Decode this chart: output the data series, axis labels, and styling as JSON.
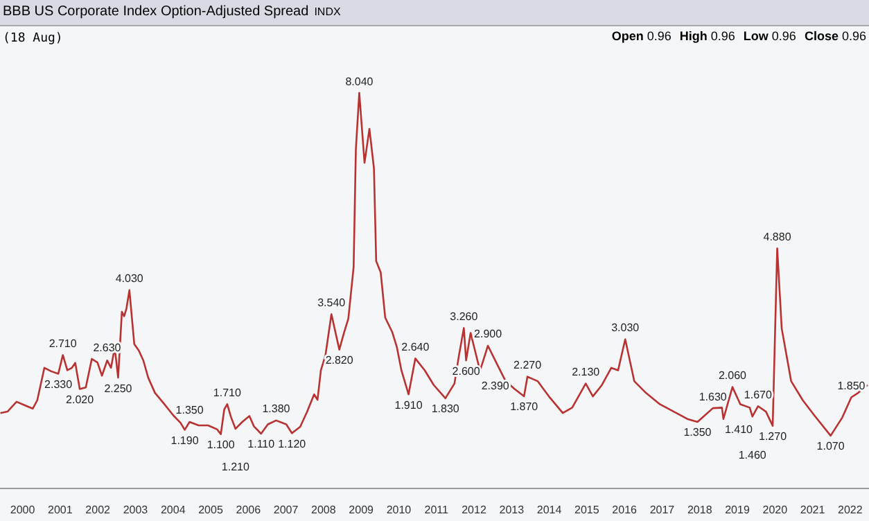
{
  "chart_data": {
    "type": "line",
    "title": "BBB US Corporate Index Option-Adjusted Spread",
    "subtitle": "INDX",
    "annotations": [
      "Open 0.96",
      "High 0.96",
      "Low 0.96",
      "Close 0.96",
      "(18 Aug)"
    ],
    "xlim": [
      1999.4,
      2022.5
    ],
    "xticks": [
      2000,
      2001,
      2002,
      2003,
      2004,
      2005,
      2006,
      2007,
      2008,
      2009,
      2010,
      2011,
      2012,
      2013,
      2014,
      2015,
      2016,
      2017,
      2018,
      2019,
      2020,
      2021,
      2022
    ],
    "x": [
      1999.41,
      1999.6,
      1999.84,
      2000.08,
      2000.27,
      2000.39,
      2000.58,
      2000.76,
      2000.95,
      2001.07,
      2001.19,
      2001.31,
      2001.4,
      2001.52,
      2001.68,
      2001.84,
      2001.99,
      2002.11,
      2002.25,
      2002.35,
      2002.45,
      2002.54,
      2002.64,
      2002.7,
      2002.76,
      2002.84,
      2002.97,
      2003.09,
      2003.21,
      2003.34,
      2003.52,
      2003.77,
      2004.01,
      2004.2,
      2004.31,
      2004.44,
      2004.68,
      2004.93,
      2005.17,
      2005.27,
      2005.36,
      2005.44,
      2005.54,
      2005.66,
      2005.84,
      2006.03,
      2006.15,
      2006.34,
      2006.52,
      2006.74,
      2007.01,
      2007.16,
      2007.38,
      2007.56,
      2007.75,
      2007.84,
      2007.93,
      2008.05,
      2008.21,
      2008.42,
      2008.54,
      2008.66,
      2008.8,
      2008.86,
      2008.95,
      2009.09,
      2009.22,
      2009.34,
      2009.4,
      2009.52,
      2009.64,
      2009.83,
      2009.95,
      2010.07,
      2010.26,
      2010.44,
      2010.69,
      2010.93,
      2011.24,
      2011.48,
      2011.6,
      2011.73,
      2011.79,
      2011.91,
      2012.16,
      2012.37,
      2012.59,
      2012.84,
      2013.08,
      2013.33,
      2013.42,
      2013.69,
      2013.99,
      2014.36,
      2014.61,
      2014.97,
      2015.16,
      2015.4,
      2015.65,
      2015.83,
      2016.02,
      2016.26,
      2016.57,
      2016.94,
      2017.31,
      2017.67,
      2017.94,
      2018.35,
      2018.59,
      2018.63,
      2018.87,
      2019.08,
      2019.33,
      2019.4,
      2019.55,
      2019.76,
      2019.94,
      2020.06,
      2020.18,
      2020.43,
      2020.74,
      2021.05,
      2021.48,
      2021.79,
      2022.03,
      2022.21,
      2022.46
    ],
    "series": [
      {
        "color": "#b83232",
        "values": [
          1.53,
          1.56,
          1.76,
          1.68,
          1.62,
          1.79,
          2.45,
          2.38,
          2.33,
          2.71,
          2.4,
          2.45,
          2.55,
          2.02,
          2.05,
          2.63,
          2.56,
          2.29,
          2.6,
          2.45,
          2.86,
          2.25,
          3.59,
          3.5,
          3.65,
          4.03,
          2.93,
          2.8,
          2.6,
          2.25,
          1.94,
          1.71,
          1.48,
          1.33,
          1.19,
          1.35,
          1.28,
          1.28,
          1.2,
          1.1,
          1.6,
          1.71,
          1.45,
          1.21,
          1.35,
          1.47,
          1.26,
          1.11,
          1.3,
          1.38,
          1.3,
          1.12,
          1.25,
          1.55,
          1.91,
          1.8,
          2.4,
          2.7,
          3.54,
          2.82,
          3.15,
          3.45,
          4.5,
          6.9,
          8.04,
          6.62,
          7.31,
          6.51,
          4.62,
          4.39,
          3.47,
          3.17,
          2.87,
          2.4,
          1.91,
          2.64,
          2.4,
          2.1,
          1.83,
          2.13,
          2.7,
          3.26,
          2.6,
          3.16,
          2.39,
          2.9,
          2.56,
          2.18,
          2.02,
          1.87,
          2.27,
          2.18,
          1.87,
          1.53,
          1.64,
          2.13,
          1.87,
          2.1,
          2.45,
          2.4,
          3.03,
          2.18,
          1.94,
          1.71,
          1.56,
          1.41,
          1.35,
          1.63,
          1.64,
          1.41,
          2.06,
          1.71,
          1.64,
          1.46,
          1.67,
          1.56,
          1.27,
          4.88,
          3.25,
          2.18,
          1.79,
          1.48,
          1.07,
          1.44,
          1.85,
          1.94,
          2.1
        ],
        "value_labels": [
          null,
          null,
          null,
          null,
          null,
          null,
          null,
          null,
          "2.330",
          "2.710",
          null,
          null,
          null,
          "2.020",
          null,
          "2.630",
          null,
          null,
          null,
          null,
          null,
          "2.250",
          null,
          null,
          null,
          "4.030",
          null,
          null,
          null,
          null,
          null,
          null,
          null,
          null,
          "1.190",
          "1.350",
          null,
          null,
          null,
          "1.100",
          null,
          "1.710",
          null,
          "1.210",
          null,
          null,
          null,
          "1.110",
          null,
          "1.380",
          null,
          "1.120",
          null,
          null,
          null,
          null,
          null,
          null,
          "3.540",
          "2.820",
          null,
          null,
          null,
          null,
          "8.040",
          null,
          null,
          null,
          null,
          null,
          null,
          null,
          null,
          null,
          "1.910",
          "2.640",
          null,
          null,
          "1.830",
          null,
          null,
          "3.260",
          "2.600",
          null,
          "2.390",
          "2.900",
          null,
          null,
          null,
          "1.870",
          "2.270",
          null,
          null,
          null,
          null,
          "2.130",
          null,
          null,
          null,
          null,
          "3.030",
          null,
          null,
          null,
          null,
          null,
          "1.350",
          "1.630",
          null,
          "1.410",
          "2.060",
          null,
          null,
          "1.460",
          "1.670",
          null,
          "1.270",
          "4.880",
          null,
          null,
          null,
          null,
          "1.070",
          null,
          "1.850",
          null,
          null
        ]
      }
    ]
  }
}
